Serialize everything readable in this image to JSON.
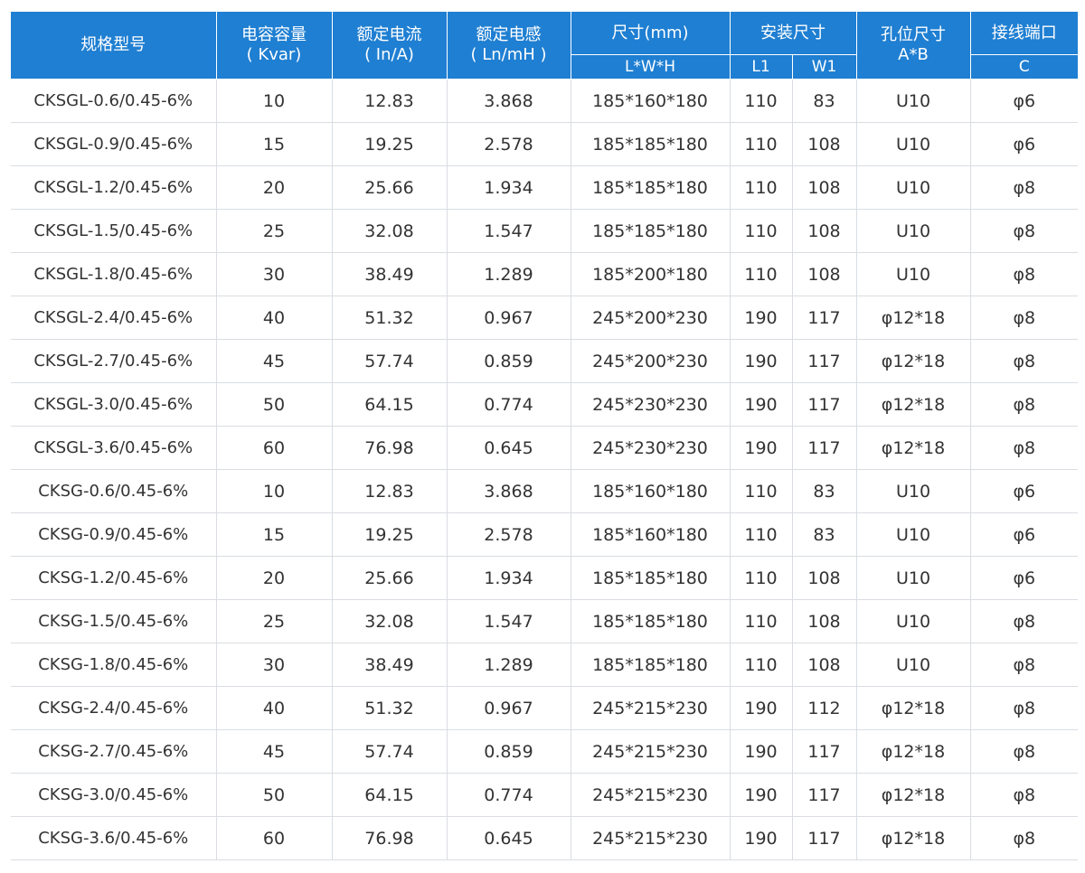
{
  "header": {
    "model": "规格型号",
    "capacity": "电容容量",
    "capacity_unit": "( Kvar)",
    "current": "额定电流",
    "current_unit": "( In/A)",
    "inductance": "额定电感",
    "inductance_unit": "( Ln/mH )",
    "size": "尺寸(mm)",
    "size_sub": "L*W*H",
    "mount": "安装尺寸",
    "mount_l1": "L1",
    "mount_w1": "W1",
    "hole": "孔位尺寸",
    "hole_sub": "A*B",
    "terminal": "接线端口",
    "terminal_sub": "C"
  },
  "rows": [
    [
      "CKSGL-0.6/0.45-6%",
      "10",
      "12.83",
      "3.868",
      "185*160*180",
      "110",
      "83",
      "U10",
      "φ6"
    ],
    [
      "CKSGL-0.9/0.45-6%",
      "15",
      "19.25",
      "2.578",
      "185*185*180",
      "110",
      "108",
      "U10",
      "φ6"
    ],
    [
      "CKSGL-1.2/0.45-6%",
      "20",
      "25.66",
      "1.934",
      "185*185*180",
      "110",
      "108",
      "U10",
      "φ8"
    ],
    [
      "CKSGL-1.5/0.45-6%",
      "25",
      "32.08",
      "1.547",
      "185*185*180",
      "110",
      "108",
      "U10",
      "φ8"
    ],
    [
      "CKSGL-1.8/0.45-6%",
      "30",
      "38.49",
      "1.289",
      "185*200*180",
      "110",
      "108",
      "U10",
      "φ8"
    ],
    [
      "CKSGL-2.4/0.45-6%",
      "40",
      "51.32",
      "0.967",
      "245*200*230",
      "190",
      "117",
      "φ12*18",
      "φ8"
    ],
    [
      "CKSGL-2.7/0.45-6%",
      "45",
      "57.74",
      "0.859",
      "245*200*230",
      "190",
      "117",
      "φ12*18",
      "φ8"
    ],
    [
      "CKSGL-3.0/0.45-6%",
      "50",
      "64.15",
      "0.774",
      "245*230*230",
      "190",
      "117",
      "φ12*18",
      "φ8"
    ],
    [
      "CKSGL-3.6/0.45-6%",
      "60",
      "76.98",
      "0.645",
      "245*230*230",
      "190",
      "117",
      "φ12*18",
      "φ8"
    ],
    [
      "CKSG-0.6/0.45-6%",
      "10",
      "12.83",
      "3.868",
      "185*160*180",
      "110",
      "83",
      "U10",
      "φ6"
    ],
    [
      "CKSG-0.9/0.45-6%",
      "15",
      "19.25",
      "2.578",
      "185*160*180",
      "110",
      "83",
      "U10",
      "φ6"
    ],
    [
      "CKSG-1.2/0.45-6%",
      "20",
      "25.66",
      "1.934",
      "185*185*180",
      "110",
      "108",
      "U10",
      "φ6"
    ],
    [
      "CKSG-1.5/0.45-6%",
      "25",
      "32.08",
      "1.547",
      "185*185*180",
      "110",
      "108",
      "U10",
      "φ8"
    ],
    [
      "CKSG-1.8/0.45-6%",
      "30",
      "38.49",
      "1.289",
      "185*185*180",
      "110",
      "108",
      "U10",
      "φ8"
    ],
    [
      "CKSG-2.4/0.45-6%",
      "40",
      "51.32",
      "0.967",
      "245*215*230",
      "190",
      "112",
      "φ12*18",
      "φ8"
    ],
    [
      "CKSG-2.7/0.45-6%",
      "45",
      "57.74",
      "0.859",
      "245*215*230",
      "190",
      "117",
      "φ12*18",
      "φ8"
    ],
    [
      "CKSG-3.0/0.45-6%",
      "50",
      "64.15",
      "0.774",
      "245*215*230",
      "190",
      "117",
      "φ12*18",
      "φ8"
    ],
    [
      "CKSG-3.6/0.45-6%",
      "60",
      "76.98",
      "0.645",
      "245*215*230",
      "190",
      "117",
      "φ12*18",
      "φ8"
    ]
  ]
}
